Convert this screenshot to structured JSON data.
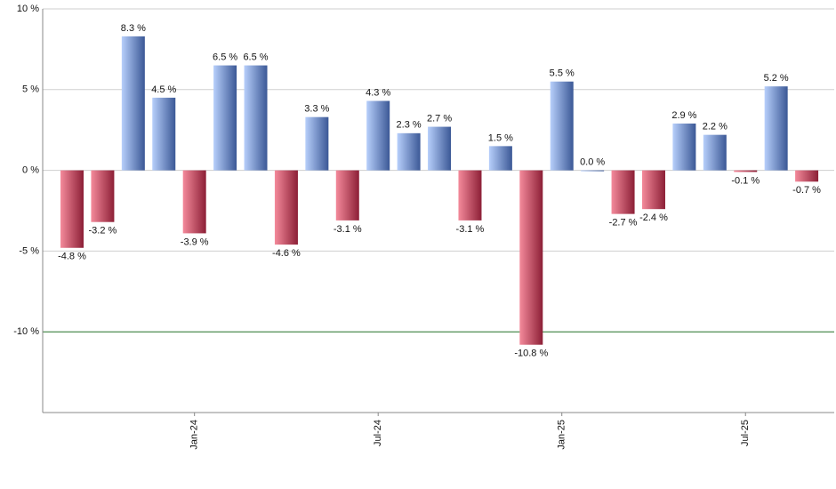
{
  "chart_data": {
    "type": "bar",
    "categories": [
      null,
      null,
      null,
      null,
      "Jan-24",
      null,
      null,
      null,
      null,
      null,
      "Jul-24",
      null,
      null,
      null,
      null,
      null,
      "Jan-25",
      null,
      null,
      null,
      null,
      null,
      "Jul-25",
      null,
      null
    ],
    "values": [
      -4.8,
      -3.2,
      8.3,
      4.5,
      -3.9,
      6.5,
      6.5,
      -4.6,
      3.3,
      -3.1,
      4.3,
      2.3,
      2.7,
      -3.1,
      1.5,
      -10.8,
      5.5,
      0.0,
      -2.7,
      -2.4,
      2.9,
      2.2,
      -0.1,
      5.2,
      -0.7
    ],
    "value_labels": [
      "-4.8 %",
      "-3.2 %",
      "8.3 %",
      "4.5 %",
      "-3.9 %",
      "6.5 %",
      "6.5 %",
      "-4.6 %",
      "3.3 %",
      "-3.1 %",
      "4.3 %",
      "2.3 %",
      "2.7 %",
      "-3.1 %",
      "1.5 %",
      "-10.8 %",
      "5.5 %",
      "0.0 %",
      "-2.7 %",
      "-2.4 %",
      "2.9 %",
      "2.2 %",
      "-0.1 %",
      "5.2 %",
      "-0.7 %"
    ],
    "positive_gradient": [
      "#b7cffb",
      "#3b5896"
    ],
    "negative_gradient": [
      "#f48a9b",
      "#8c1f36"
    ],
    "ylim": [
      -15,
      10
    ],
    "yticks": [
      {
        "value": 10,
        "label": "10 %"
      },
      {
        "value": 5,
        "label": "5 %"
      },
      {
        "value": 0,
        "label": "0 %"
      },
      {
        "value": -5,
        "label": "-5 %"
      },
      {
        "value": -10,
        "label": "-10 %"
      }
    ],
    "grid": true,
    "reference_line": {
      "value": -10,
      "color": "#2e7d32"
    }
  }
}
